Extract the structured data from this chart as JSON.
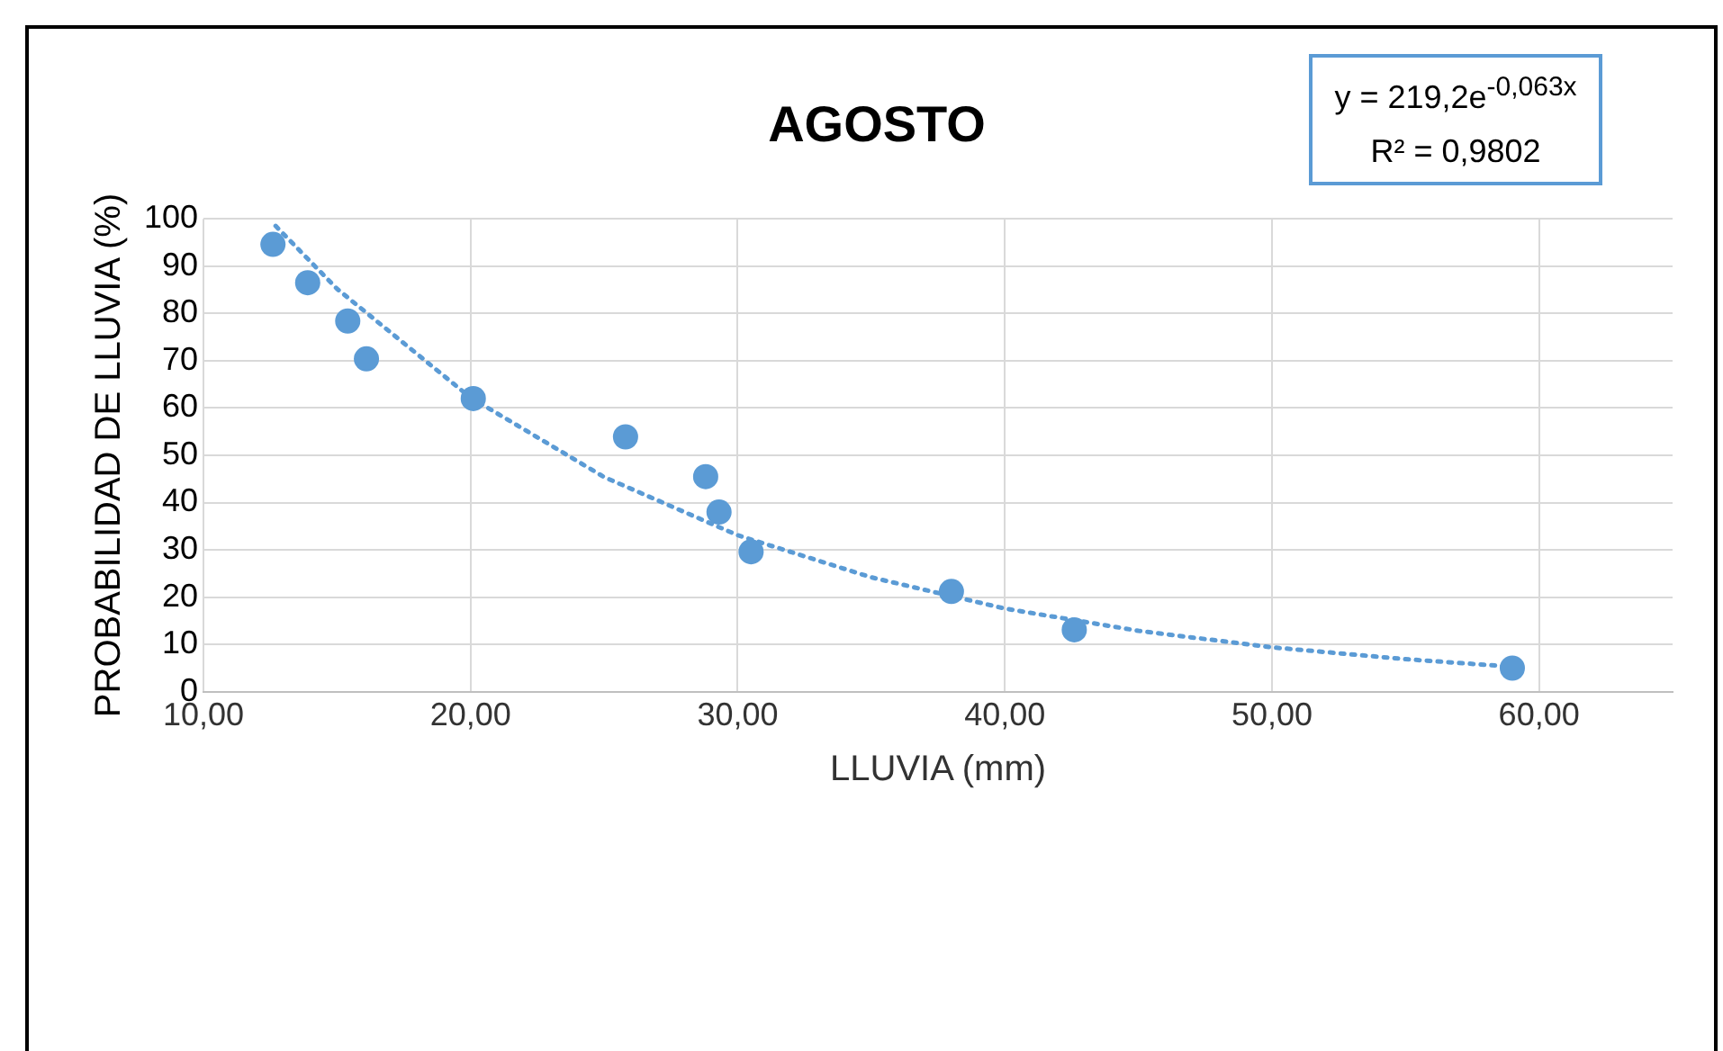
{
  "chart_data": {
    "type": "scatter",
    "title": "AGOSTO",
    "xlabel": "LLUVIA (mm)",
    "ylabel": "PROBABILIDAD DE LLUVIA (%)",
    "annotations": [
      "y = 219,2e$^{-0,063x}$",
      "R² = 0,9802"
    ],
    "x": [
      12.6,
      13.9,
      15.4,
      16.1,
      20.1,
      25.8,
      28.8,
      29.3,
      30.5,
      38.0,
      42.6,
      59.0
    ],
    "series": [
      {
        "color": "#5b9bd5",
        "marker": "circle",
        "values": [
          94.6,
          86.5,
          78.4,
          70.4,
          62.0,
          53.9,
          45.5,
          38.0,
          29.6,
          21.2,
          13.1,
          5.0
        ]
      },
      {
        "type": "line",
        "color": "#5b9bd5",
        "line_style": "dotted",
        "marker": "none",
        "x": [
          12.7,
          15,
          20,
          25,
          30,
          35,
          40,
          45,
          50,
          55,
          59
        ],
        "values": [
          98.5,
          85.2,
          62.2,
          45.4,
          33.1,
          24.2,
          17.6,
          12.9,
          9.4,
          6.9,
          5.3
        ]
      }
    ],
    "xlim": [
      10,
      65
    ],
    "xticks": [
      {
        "value": 10,
        "label": "10,00"
      },
      {
        "value": 20,
        "label": "20,00"
      },
      {
        "value": 30,
        "label": "30,00"
      },
      {
        "value": 40,
        "label": "40,00"
      },
      {
        "value": 50,
        "label": "50,00"
      },
      {
        "value": 60,
        "label": "60,00"
      }
    ],
    "ylim": [
      0,
      100
    ],
    "yticks": [
      0,
      10,
      20,
      30,
      40,
      50,
      60,
      70,
      80,
      90,
      100
    ],
    "grid": true,
    "legend": false
  }
}
